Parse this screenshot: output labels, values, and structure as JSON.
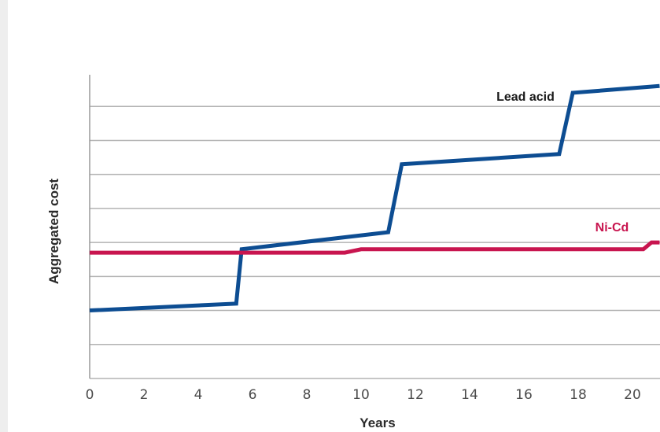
{
  "chart_data": {
    "type": "line",
    "title": "",
    "xlabel": "Years",
    "ylabel": "Aggregated cost",
    "x_ticks": [
      "0",
      "2",
      "4",
      "6",
      "8",
      "10",
      "12",
      "14",
      "16",
      "18",
      "20"
    ],
    "xlim": [
      0,
      21
    ],
    "ylim": [
      0,
      9
    ],
    "y_ticks_labeled": false,
    "grid": true,
    "series": [
      {
        "name": "Lead acid",
        "color": "#0d4d92",
        "points": [
          [
            0,
            2.0
          ],
          [
            5.4,
            2.2
          ],
          [
            5.6,
            3.8
          ],
          [
            11.0,
            4.3
          ],
          [
            11.5,
            6.3
          ],
          [
            17.3,
            6.6
          ],
          [
            17.8,
            8.4
          ],
          [
            21,
            8.6
          ]
        ]
      },
      {
        "name": "Ni-Cd",
        "color": "#c8154f",
        "points": [
          [
            0,
            3.7
          ],
          [
            9.4,
            3.7
          ],
          [
            10.0,
            3.8
          ],
          [
            20.4,
            3.8
          ],
          [
            20.7,
            4.0
          ],
          [
            21,
            4.0
          ]
        ]
      }
    ]
  }
}
